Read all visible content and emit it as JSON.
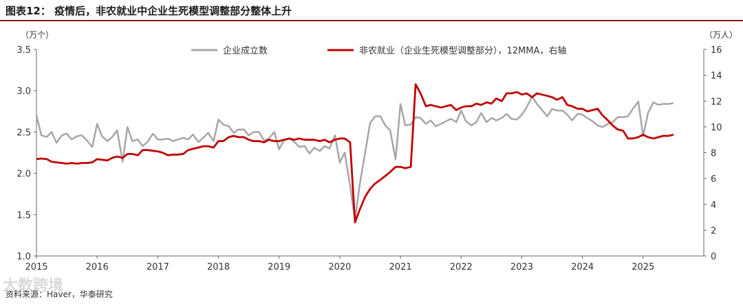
{
  "header": {
    "title": "图表12：  疫情后，非农就业中企业生死模型调整部分整体上升"
  },
  "footer": {
    "source": "资料来源：Haver，华泰研究",
    "watermark": "大数跨境"
  },
  "colors": {
    "series_1": "#a6a6a6",
    "series_2": "#c00000",
    "title_rule": "#8b1a1a",
    "axis": "#666666"
  },
  "chart_data": {
    "type": "line",
    "legend_position": "top",
    "grid": false,
    "y_left": {
      "unit_label": "（万个）",
      "range": [
        1.0,
        3.5
      ],
      "ticks": [
        "3.5",
        "3.0",
        "2.5",
        "2.0",
        "1.5",
        "1.0"
      ]
    },
    "y_right": {
      "unit_label": "（万人）",
      "range": [
        0,
        16
      ],
      "ticks": [
        "16",
        "14",
        "12",
        "10",
        "8",
        "6",
        "4",
        "2",
        "0"
      ]
    },
    "x_axis": {
      "range": [
        2015.0,
        2026.0
      ],
      "ticks": [
        "2015",
        "2016",
        "2017",
        "2018",
        "2019",
        "2020",
        "2021",
        "2022",
        "2023",
        "2024",
        "2025"
      ]
    },
    "series": [
      {
        "name": "企业成立数",
        "axis": "left",
        "x": [
          2015.0,
          2015.08,
          2015.17,
          2015.25,
          2015.33,
          2015.42,
          2015.5,
          2015.58,
          2015.67,
          2015.75,
          2015.83,
          2015.92,
          2016.0,
          2016.08,
          2016.17,
          2016.25,
          2016.33,
          2016.42,
          2016.5,
          2016.58,
          2016.67,
          2016.75,
          2016.83,
          2016.92,
          2017.0,
          2017.08,
          2017.17,
          2017.25,
          2017.33,
          2017.42,
          2017.5,
          2017.58,
          2017.67,
          2017.75,
          2017.83,
          2017.92,
          2018.0,
          2018.08,
          2018.17,
          2018.25,
          2018.33,
          2018.42,
          2018.5,
          2018.58,
          2018.67,
          2018.75,
          2018.83,
          2018.92,
          2019.0,
          2019.08,
          2019.17,
          2019.25,
          2019.33,
          2019.42,
          2019.5,
          2019.58,
          2019.67,
          2019.75,
          2019.83,
          2019.92,
          2020.0,
          2020.08,
          2020.17,
          2020.25,
          2020.33,
          2020.42,
          2020.5,
          2020.58,
          2020.67,
          2020.75,
          2020.83,
          2020.92,
          2021.0,
          2021.08,
          2021.17,
          2021.25,
          2021.33,
          2021.42,
          2021.5,
          2021.58,
          2021.67,
          2021.75,
          2021.83,
          2021.92,
          2022.0,
          2022.08,
          2022.17,
          2022.25,
          2022.33,
          2022.42,
          2022.5,
          2022.58,
          2022.67,
          2022.75,
          2022.83,
          2022.92,
          2023.0,
          2023.08,
          2023.17,
          2023.25,
          2023.33,
          2023.42,
          2023.5,
          2023.58,
          2023.67,
          2023.75,
          2023.83,
          2023.92,
          2024.0,
          2024.08,
          2024.17,
          2024.25,
          2024.33,
          2024.42,
          2024.5,
          2024.58,
          2024.67,
          2024.75,
          2024.83,
          2024.92,
          2025.0,
          2025.08,
          2025.17,
          2025.25,
          2025.33,
          2025.42,
          2025.5
        ],
        "values": [
          2.7,
          2.46,
          2.44,
          2.5,
          2.37,
          2.46,
          2.48,
          2.41,
          2.45,
          2.46,
          2.4,
          2.32,
          2.6,
          2.45,
          2.39,
          2.44,
          2.52,
          2.14,
          2.56,
          2.39,
          2.41,
          2.33,
          2.38,
          2.48,
          2.41,
          2.41,
          2.42,
          2.39,
          2.41,
          2.43,
          2.41,
          2.47,
          2.38,
          2.43,
          2.49,
          2.39,
          2.65,
          2.59,
          2.57,
          2.49,
          2.53,
          2.53,
          2.46,
          2.5,
          2.5,
          2.4,
          2.42,
          2.5,
          2.29,
          2.4,
          2.42,
          2.38,
          2.32,
          2.33,
          2.24,
          2.31,
          2.27,
          2.33,
          2.3,
          2.46,
          2.13,
          2.25,
          1.85,
          1.44,
          1.87,
          2.26,
          2.61,
          2.69,
          2.69,
          2.58,
          2.52,
          2.17,
          2.84,
          2.58,
          2.59,
          2.68,
          2.67,
          2.6,
          2.64,
          2.57,
          2.6,
          2.63,
          2.66,
          2.62,
          2.76,
          2.63,
          2.58,
          2.62,
          2.73,
          2.62,
          2.67,
          2.64,
          2.67,
          2.72,
          2.66,
          2.65,
          2.71,
          2.8,
          2.93,
          2.84,
          2.77,
          2.69,
          2.78,
          2.76,
          2.76,
          2.71,
          2.64,
          2.72,
          2.71,
          2.67,
          2.63,
          2.58,
          2.56,
          2.6,
          2.62,
          2.68,
          2.68,
          2.69,
          2.78,
          2.87,
          2.45,
          2.73,
          2.86,
          2.83,
          2.84,
          2.84,
          2.85
        ]
      },
      {
        "name": "非农就业（企业生死模型调整部分），12MMA，右轴",
        "axis": "right",
        "x": [
          2015.0,
          2015.08,
          2015.17,
          2015.25,
          2015.33,
          2015.42,
          2015.5,
          2015.58,
          2015.67,
          2015.75,
          2015.83,
          2015.92,
          2016.0,
          2016.08,
          2016.17,
          2016.25,
          2016.33,
          2016.42,
          2016.5,
          2016.58,
          2016.67,
          2016.75,
          2016.83,
          2016.92,
          2017.0,
          2017.08,
          2017.17,
          2017.25,
          2017.33,
          2017.42,
          2017.5,
          2017.58,
          2017.67,
          2017.75,
          2017.83,
          2017.92,
          2018.0,
          2018.08,
          2018.17,
          2018.25,
          2018.33,
          2018.42,
          2018.5,
          2018.58,
          2018.67,
          2018.75,
          2018.83,
          2018.92,
          2019.0,
          2019.08,
          2019.17,
          2019.25,
          2019.33,
          2019.42,
          2019.5,
          2019.58,
          2019.67,
          2019.75,
          2019.83,
          2019.92,
          2020.0,
          2020.08,
          2020.17,
          2020.25,
          2020.33,
          2020.42,
          2020.5,
          2020.58,
          2020.67,
          2020.75,
          2020.83,
          2020.92,
          2021.0,
          2021.08,
          2021.17,
          2021.25,
          2021.33,
          2021.42,
          2021.5,
          2021.58,
          2021.67,
          2021.75,
          2021.83,
          2021.92,
          2022.0,
          2022.08,
          2022.17,
          2022.25,
          2022.33,
          2022.42,
          2022.5,
          2022.58,
          2022.67,
          2022.75,
          2022.83,
          2022.92,
          2023.0,
          2023.08,
          2023.17,
          2023.25,
          2023.33,
          2023.42,
          2023.5,
          2023.58,
          2023.67,
          2023.75,
          2023.83,
          2023.92,
          2024.0,
          2024.08,
          2024.17,
          2024.25,
          2024.33,
          2024.42,
          2024.5,
          2024.58,
          2024.67,
          2024.75,
          2024.83,
          2024.92,
          2025.0,
          2025.08,
          2025.17,
          2025.25,
          2025.33,
          2025.42,
          2025.5
        ],
        "values": [
          7.5,
          7.55,
          7.5,
          7.3,
          7.25,
          7.2,
          7.15,
          7.2,
          7.15,
          7.2,
          7.2,
          7.25,
          7.5,
          7.45,
          7.4,
          7.6,
          7.7,
          7.6,
          7.9,
          7.9,
          7.8,
          8.2,
          8.2,
          8.15,
          8.1,
          8.0,
          7.8,
          7.85,
          7.85,
          7.9,
          8.2,
          8.3,
          8.4,
          8.5,
          8.5,
          8.4,
          8.9,
          8.9,
          9.2,
          9.3,
          9.2,
          9.2,
          9.0,
          8.9,
          8.9,
          8.8,
          9.0,
          8.9,
          8.9,
          9.0,
          9.1,
          9.0,
          9.1,
          9.0,
          9.0,
          9.0,
          8.9,
          9.0,
          8.8,
          9.0,
          9.1,
          9.1,
          8.8,
          2.6,
          3.6,
          4.6,
          5.2,
          5.6,
          5.9,
          6.2,
          6.5,
          6.9,
          6.9,
          6.8,
          6.9,
          13.3,
          12.6,
          11.6,
          11.7,
          11.6,
          11.5,
          11.6,
          11.7,
          11.3,
          11.5,
          11.6,
          11.6,
          11.8,
          11.7,
          11.9,
          11.8,
          12.2,
          12.0,
          12.6,
          12.6,
          12.7,
          12.5,
          12.6,
          12.3,
          12.6,
          12.5,
          12.4,
          12.3,
          12.1,
          12.3,
          11.7,
          11.6,
          11.4,
          11.4,
          11.2,
          11.3,
          11.4,
          10.9,
          10.5,
          10.1,
          9.8,
          9.7,
          9.1,
          9.1,
          9.2,
          9.4,
          9.2,
          9.1,
          9.2,
          9.3,
          9.3,
          9.4
        ]
      }
    ]
  }
}
